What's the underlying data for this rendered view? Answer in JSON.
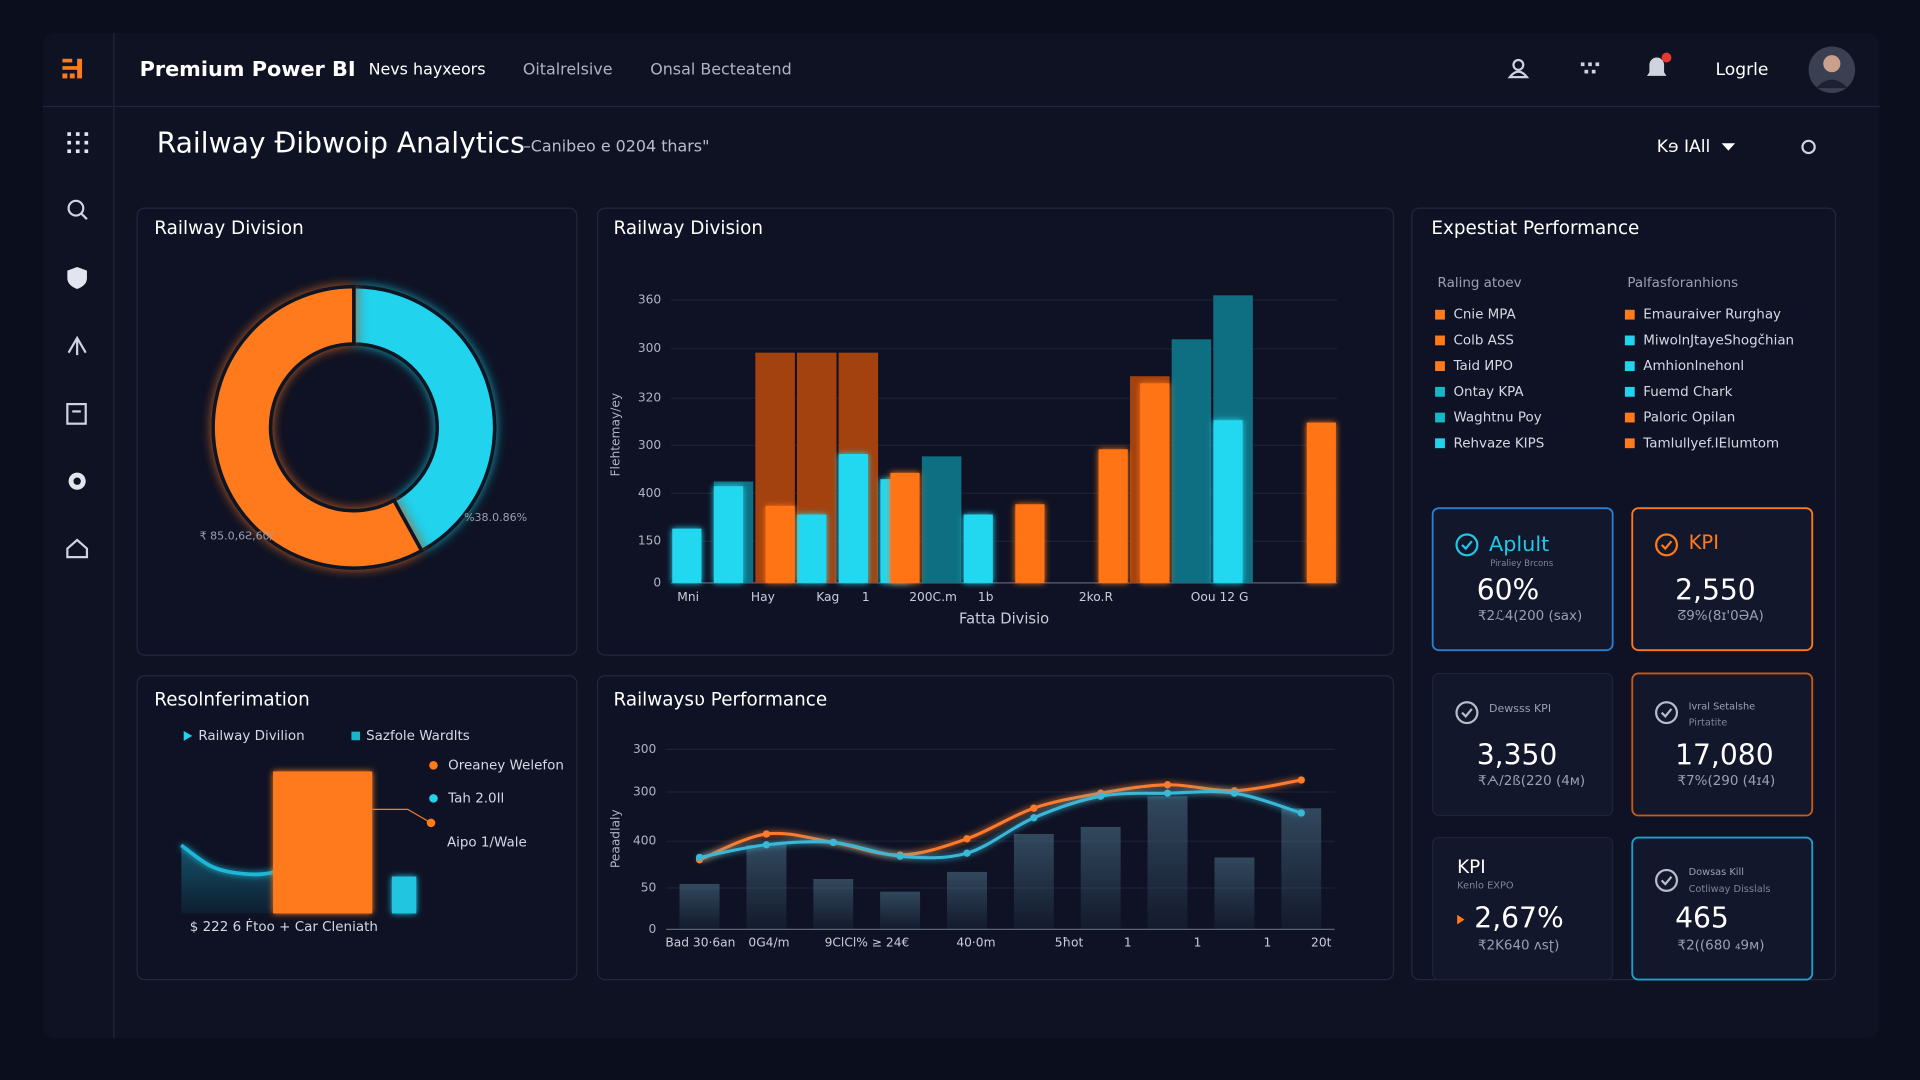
{
  "header": {
    "brand": "Premium Power BI",
    "nav": [
      "Nevs hayxeors",
      "Oitalrelsive",
      "Onsal Becteatend"
    ],
    "login": "Logrle"
  },
  "page": {
    "title": "Railway Ðibwoip Analytics",
    "subtitle": "–Canibeo e 0204 thars\"",
    "filter": "Kɘ IAll"
  },
  "donut": {
    "type": "pie",
    "title": "Railway Division",
    "values": [
      42,
      58
    ],
    "colors": [
      "#22d3ee",
      "#ff7a1a"
    ],
    "annotations": [
      "₹ 85.0,6Ƨ,60/",
      "%38.0.86%"
    ]
  },
  "bar_chart": {
    "type": "bar",
    "title": "Railway Division",
    "y_label": "Flehtemay/ey",
    "x_label": "Fatta Divisio",
    "x_tick_labels": [
      "Mni",
      "Hay",
      "Kag",
      "1",
      "200C.m",
      "1b",
      "2ko.R",
      "Oou 12 G"
    ],
    "ylim": [
      0,
      370
    ],
    "yticks": [
      0,
      {
        "value": 53,
        "label": "150"
      },
      {
        "value": 114,
        "label": "400"
      },
      {
        "value": 175,
        "label": "300"
      },
      {
        "value": 235,
        "label": "320"
      },
      {
        "value": 298,
        "label": "300"
      },
      360
    ],
    "series": [
      {
        "color": "#0f6f82",
        "values": [
          null,
          129,
          null,
          null,
          null,
          null,
          161,
          null,
          null,
          null,
          null,
          null,
          310,
          366,
          null,
          null
        ]
      },
      {
        "color": "#a3410f",
        "values": [
          null,
          null,
          293,
          293,
          293,
          null,
          null,
          null,
          null,
          null,
          null,
          263,
          null,
          null,
          null,
          null
        ]
      },
      {
        "color": "#22d8f0",
        "values": [
          69,
          123,
          null,
          87,
          164,
          132,
          null,
          87,
          null,
          null,
          null,
          null,
          null,
          207,
          null,
          null
        ]
      },
      {
        "color": "#ff7418",
        "values": [
          null,
          null,
          98,
          null,
          null,
          140,
          null,
          null,
          100,
          null,
          170,
          254,
          null,
          null,
          null,
          204
        ]
      }
    ]
  },
  "combo": {
    "type": "bar",
    "title": "Resolnferimation",
    "legend": [
      {
        "name": "Railway Divilion",
        "color": "#22d3ee"
      },
      {
        "name": "Sazfole Wardlts",
        "color": "#14b8c8"
      },
      {
        "name": "Oreaney Welefon",
        "color": "#ff7a1a"
      },
      {
        "name": "Tah 2.0Il",
        "color": "#22d3ee"
      }
    ],
    "annotation": "Aipo 1/Wale",
    "footer": "$ 222 6 Ḟtoo + Car Cleniath",
    "ylim": [
      0,
      100
    ],
    "area": {
      "color": "#1fb8d6",
      "values": [
        48,
        33,
        28,
        29,
        40,
        57
      ]
    },
    "bars": {
      "colors": [
        "#ff7a1a",
        "#22c5e0"
      ],
      "values": [
        100,
        26
      ]
    }
  },
  "line_chart": {
    "type": "line",
    "title": "Railwaysʋ Performance",
    "y_label": "Peaadlaly",
    "x_tick_labels": [
      "Bad 30·6an",
      "0G4/m",
      "9ClCl% ≥ 24€",
      "40·0m",
      "5ħot",
      "1",
      "1",
      "1",
      "20t"
    ],
    "ylim": [
      0,
      300
    ],
    "yticks": [
      0,
      {
        "value": 69,
        "label": "50"
      },
      {
        "value": 147,
        "label": "400"
      },
      {
        "value": 229,
        "label": "300"
      },
      300
    ],
    "bars": {
      "color": "#4a6d84",
      "values": [
        76,
        141,
        84,
        63,
        96,
        159,
        171,
        222,
        120,
        202
      ]
    },
    "series": [
      {
        "color": "#ff7a2a",
        "values": [
          116,
          159,
          145,
          124,
          151,
          202,
          227,
          241,
          231,
          249
        ]
      },
      {
        "color": "#3ab8d8",
        "values": [
          120,
          141,
          145,
          122,
          127,
          186,
          222,
          227,
          227,
          194
        ]
      }
    ]
  },
  "performance": {
    "title": "Expestiat Performance",
    "columns": [
      {
        "heading": "Raling atoev",
        "items": [
          {
            "label": "Cnie MPA",
            "color": "#ff7a1a"
          },
          {
            "label": "Colb ASS",
            "color": "#ff7a1a"
          },
          {
            "label": "Taid ИPO",
            "color": "#ff7a1a"
          },
          {
            "label": "Ontay KPA",
            "color": "#14b8c8"
          },
          {
            "label": "Waghtnu Poy",
            "color": "#14b8c8"
          },
          {
            "label": "Rehvaze KIPS",
            "color": "#22d3ee"
          }
        ]
      },
      {
        "heading": "Palfasforanhions",
        "items": [
          {
            "label": "Emauraiver Rurghay",
            "color": "#ff7a1a"
          },
          {
            "label": "MiwolnJtayeShogčhian",
            "color": "#22d3ee"
          },
          {
            "label": "Amhionlnehonl",
            "color": "#22d3ee"
          },
          {
            "label": "Fuemd Chark",
            "color": "#22d3ee"
          },
          {
            "label": "Paloric Opilan",
            "color": "#ff7a1a"
          },
          {
            "label": "Tamlullyef.IElumtom",
            "color": "#ff7a1a"
          }
        ]
      }
    ]
  },
  "kpis": [
    {
      "title": "Aplult",
      "subtitle": "Piraliey Brcons",
      "value": "60%",
      "detail": "₹2ℒ4(200 (sax)",
      "title_color": "#22c7e6",
      "border": "#2a7fd0"
    },
    {
      "title": "KPI",
      "value": "2,550",
      "detail": "ᘔ9%(8ɪ'0ƏA)",
      "title_color": "#ff7a1a",
      "border": "#ff7a1a"
    },
    {
      "title": "Dewsss KPI",
      "value": "3,350",
      "detail": "₹ᗅ/2ß(220 (4м)"
    },
    {
      "title": "Ivral Setalshe",
      "subtitle": "Pirtatite",
      "value": "17,080",
      "detail": "₹7%(290 (4ɪ4)",
      "border": "#c95a14"
    },
    {
      "title": "KPI",
      "subtitle": "Kenlo EXPO",
      "value": "2,67%",
      "detail": "₹2K640 ᴧsʈ)"
    },
    {
      "title": "Dowsas Kill",
      "subtitle": "Cotliway Disslals",
      "value": "465",
      "detail": "₹2((680 ₄9м)",
      "border": "#1f9fc9"
    }
  ]
}
